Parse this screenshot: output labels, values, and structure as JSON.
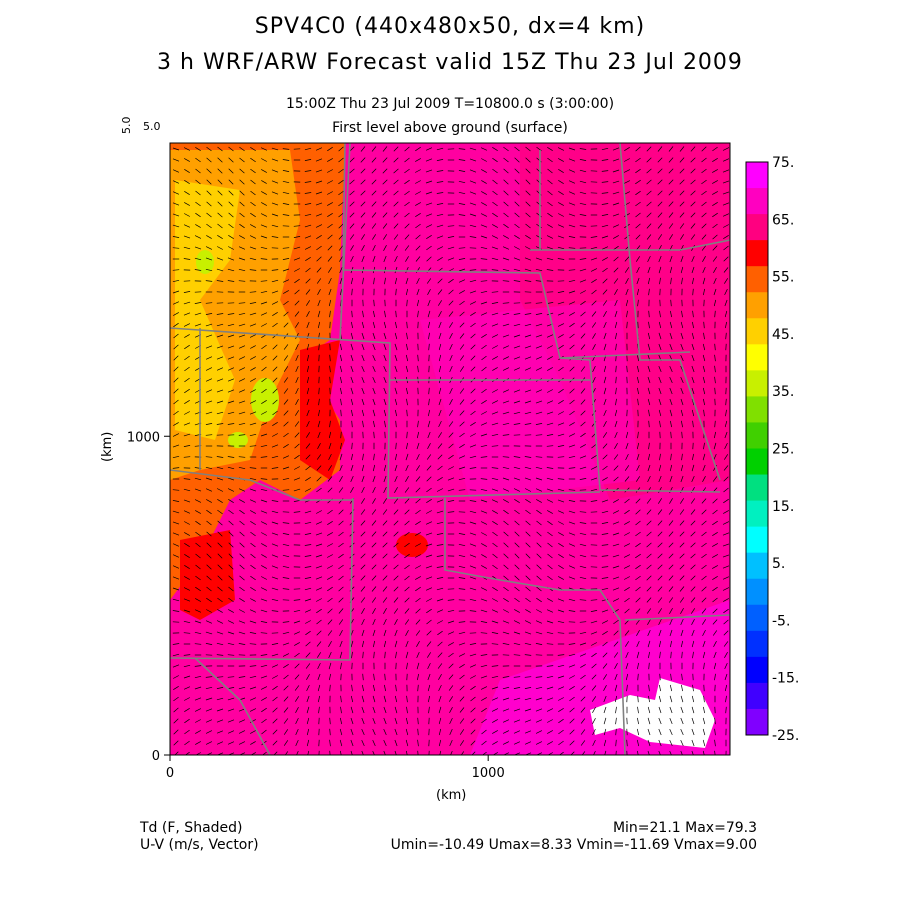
{
  "titles": {
    "line1": "SPV4C0 (440x480x50, dx=4 km)",
    "line2": "3 h WRF/ARW Forecast valid 15Z Thu 23 Jul 2009",
    "time_line": "15:00Z Thu 23 Jul 2009    T=10800.0 s (3:00:00)",
    "level_line": "First level above ground (surface)",
    "vector_scale_top": "5.0",
    "vector_scale_side": "5.0"
  },
  "footer": {
    "field_label": "Td (F, Shaded)",
    "vector_label": "U-V (m/s, Vector)",
    "minmax": "Min=21.1 Max=79.3",
    "uv_minmax": "Umin=-10.49 Umax=8.33 Vmin=-11.69 Vmax=9.00"
  },
  "chart_data": {
    "type": "heatmap",
    "title": "3 h WRF/ARW Forecast valid 15Z Thu 23 Jul 2009",
    "xlabel": "(km)",
    "ylabel": "(km)",
    "xlim": [
      0,
      1760
    ],
    "ylim": [
      0,
      1920
    ],
    "x_ticks": [
      0,
      1000
    ],
    "x_tick_labels": [
      "0",
      "1000"
    ],
    "y_ticks": [
      0,
      1000
    ],
    "y_tick_labels": [
      "0",
      "1000"
    ],
    "colorbar": {
      "labels": [
        "75.",
        "65.",
        "55.",
        "45.",
        "35.",
        "25.",
        "15.",
        "5.",
        "-5.",
        "-15.",
        "-25."
      ],
      "levels": [
        75,
        65,
        55,
        45,
        35,
        25,
        15,
        5,
        -5,
        -15,
        -25
      ],
      "colors": [
        "#ff00ff",
        "#ff00c0",
        "#ff0080",
        "#ff0000",
        "#ff6000",
        "#ffa000",
        "#ffd000",
        "#ffff00",
        "#c8f000",
        "#80e000",
        "#40d000",
        "#00d000",
        "#00e080",
        "#00f0c0",
        "#00ffff",
        "#00c0ff",
        "#0090ff",
        "#0060ff",
        "#0030ff",
        "#0000ff",
        "#4000ff",
        "#8000ff"
      ]
    },
    "field_min": 21.1,
    "field_max": 79.3
  }
}
